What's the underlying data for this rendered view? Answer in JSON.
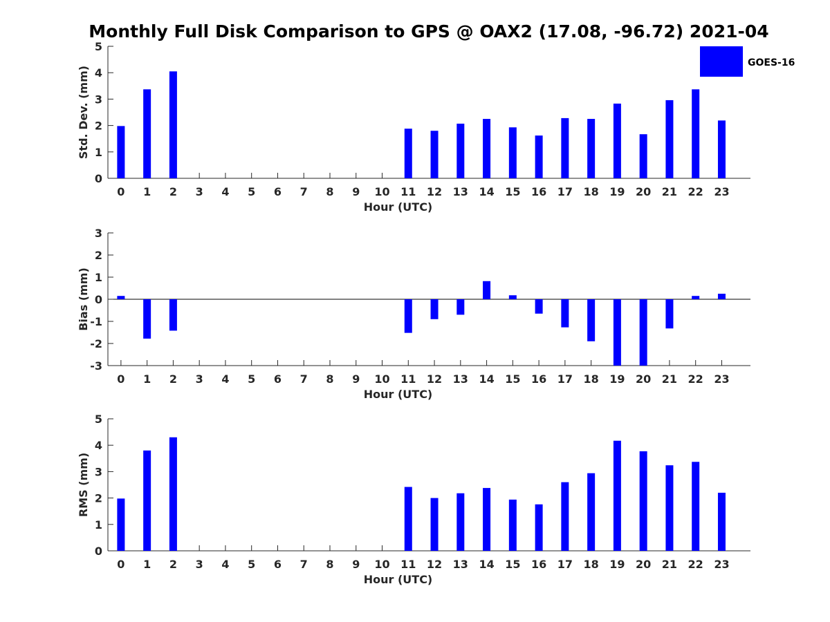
{
  "title": "Monthly Full Disk Comparison to GPS @ OAX2 (17.08, -96.72) 2021-04",
  "legend": {
    "label": "GOES-16",
    "color": "#0000ff",
    "placement": "top-right"
  },
  "chart_data": [
    {
      "type": "bar",
      "categories": [
        "0",
        "1",
        "2",
        "3",
        "4",
        "5",
        "6",
        "7",
        "8",
        "9",
        "10",
        "11",
        "12",
        "13",
        "14",
        "15",
        "16",
        "17",
        "18",
        "19",
        "20",
        "21",
        "22",
        "23"
      ],
      "series": [
        {
          "name": "GOES-16",
          "values": [
            1.98,
            3.37,
            4.05,
            null,
            null,
            null,
            null,
            null,
            null,
            null,
            null,
            1.88,
            1.8,
            2.07,
            2.25,
            1.93,
            1.62,
            2.28,
            2.25,
            2.83,
            1.67,
            2.96,
            3.37,
            2.19
          ]
        }
      ],
      "xlabel": "Hour (UTC)",
      "ylabel": "Std. Dev. (mm)",
      "ylim": [
        0,
        5
      ],
      "yticks": [
        "0",
        "1",
        "2",
        "3",
        "4",
        "5"
      ],
      "grid": false
    },
    {
      "type": "bar",
      "categories": [
        "0",
        "1",
        "2",
        "3",
        "4",
        "5",
        "6",
        "7",
        "8",
        "9",
        "10",
        "11",
        "12",
        "13",
        "14",
        "15",
        "16",
        "17",
        "18",
        "19",
        "20",
        "21",
        "22",
        "23"
      ],
      "series": [
        {
          "name": "GOES-16",
          "values": [
            0.15,
            -1.78,
            -1.42,
            null,
            null,
            null,
            null,
            null,
            null,
            null,
            null,
            -1.52,
            -0.9,
            -0.7,
            0.82,
            0.18,
            -0.65,
            -1.27,
            -1.9,
            -3.0,
            -3.0,
            -1.32,
            0.15,
            0.25
          ]
        }
      ],
      "xlabel": "Hour (UTC)",
      "ylabel": "Bias (mm)",
      "ylim": [
        -3,
        3
      ],
      "yticks": [
        "-3",
        "-2",
        "-1",
        "0",
        "1",
        "2",
        "3"
      ],
      "grid": false
    },
    {
      "type": "bar",
      "categories": [
        "0",
        "1",
        "2",
        "3",
        "4",
        "5",
        "6",
        "7",
        "8",
        "9",
        "10",
        "11",
        "12",
        "13",
        "14",
        "15",
        "16",
        "17",
        "18",
        "19",
        "20",
        "21",
        "22",
        "23"
      ],
      "series": [
        {
          "name": "GOES-16",
          "values": [
            1.98,
            3.8,
            4.3,
            null,
            null,
            null,
            null,
            null,
            null,
            null,
            null,
            2.42,
            2.0,
            2.18,
            2.38,
            1.94,
            1.76,
            2.6,
            2.94,
            4.17,
            3.77,
            3.24,
            3.37,
            2.2
          ]
        }
      ],
      "xlabel": "Hour (UTC)",
      "ylabel": "RMS (mm)",
      "ylim": [
        0,
        5
      ],
      "yticks": [
        "0",
        "1",
        "2",
        "3",
        "4",
        "5"
      ],
      "grid": false
    }
  ]
}
